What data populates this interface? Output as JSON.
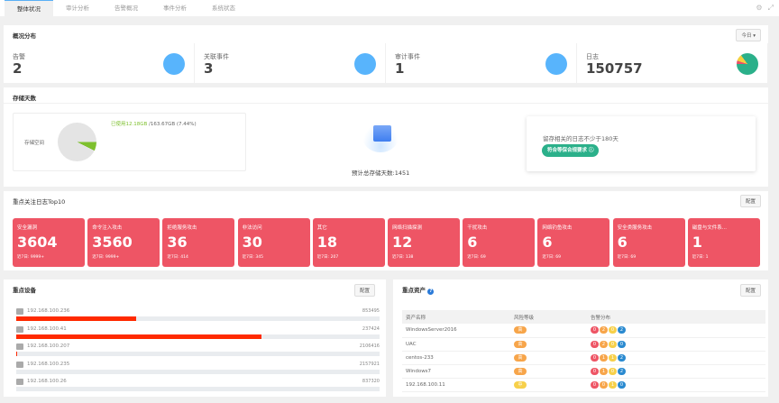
{
  "tabs": [
    "整体状况",
    "审计分析",
    "告警概况",
    "事件分析",
    "系统状态"
  ],
  "overview": {
    "title": "概况分布",
    "range": "今日",
    "stats": [
      {
        "label": "告警",
        "value": "2"
      },
      {
        "label": "关联事件",
        "value": "3"
      },
      {
        "label": "审计事件",
        "value": "1"
      },
      {
        "label": "日志",
        "value": "150757"
      }
    ]
  },
  "storage": {
    "title": "存储天数",
    "space_label": "存储空间",
    "used": "已使用12.18GB",
    "total": " /163.67GB (7.44%)",
    "used_percent": 7.44,
    "estimate": "预计总存储天数:1451",
    "tip": "留存相关的日志不少于180天",
    "compliance": "符合等保合规要求"
  },
  "top10": {
    "title": "重点关注日志Top10",
    "config": "配置",
    "prefix": "近7日:",
    "cards": [
      {
        "name": "安全漏洞",
        "value": "3604",
        "week": "9999+"
      },
      {
        "name": "命令注入攻击",
        "value": "3560",
        "week": "9999+"
      },
      {
        "name": "拒绝服务攻击",
        "value": "36",
        "week": "414"
      },
      {
        "name": "非法访问",
        "value": "30",
        "week": "345"
      },
      {
        "name": "其它",
        "value": "18",
        "week": "207"
      },
      {
        "name": "网络扫描探测",
        "value": "12",
        "week": "138"
      },
      {
        "name": "干扰攻击",
        "value": "6",
        "week": "69"
      },
      {
        "name": "网络钓鱼攻击",
        "value": "6",
        "week": "69"
      },
      {
        "name": "安全类服务攻击",
        "value": "6",
        "week": "69"
      },
      {
        "name": "磁盘与文件系...",
        "value": "1",
        "week": "1"
      }
    ]
  },
  "devices": {
    "title": "重点设备",
    "config": "配置",
    "items": [
      {
        "ip": "192.168.100.236",
        "count": "853495",
        "fill": 0.33
      },
      {
        "ip": "192.168.100.41",
        "count": "237424",
        "fill": 0.675
      },
      {
        "ip": "192.168.100.207",
        "count": "2106416",
        "fill": 0.003
      },
      {
        "ip": "192.168.100.235",
        "count": "2157921",
        "fill": 0
      },
      {
        "ip": "192.168.100.26",
        "count": "837320",
        "fill": 0
      }
    ]
  },
  "assets": {
    "title": "重点资产",
    "config": "配置",
    "headers": [
      "资产名称",
      "风险等级",
      "告警分布"
    ],
    "rows": [
      {
        "name": "WindowsServer2016",
        "risk": "高",
        "alerts": [
          "0",
          "2",
          "0",
          "2"
        ]
      },
      {
        "name": "UAC",
        "risk": "高",
        "alerts": [
          "0",
          "2",
          "0",
          "0"
        ]
      },
      {
        "name": "centos-233",
        "risk": "高",
        "alerts": [
          "0",
          "1",
          "1",
          "2"
        ]
      },
      {
        "name": "Windows7",
        "risk": "高",
        "alerts": [
          "0",
          "1",
          "0",
          "2"
        ]
      },
      {
        "name": "192.168.100.11",
        "risk": "中",
        "alerts": [
          "0",
          "0",
          "1",
          "0"
        ]
      }
    ]
  },
  "colors": {
    "card": "#ee5565",
    "bar": "#ff2a00",
    "accent": "#58b4fc",
    "green": "#2bb08a",
    "alerts": [
      "#ee5565",
      "#f7a54a",
      "#f7d04a",
      "#2a8ad0"
    ]
  }
}
